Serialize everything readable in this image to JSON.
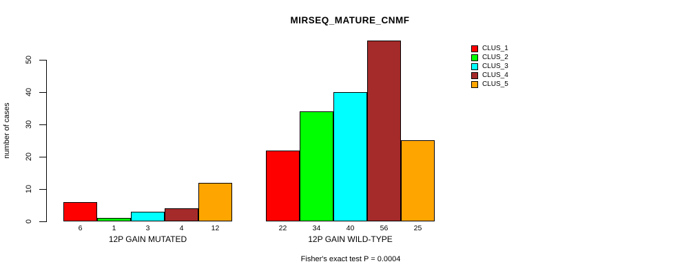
{
  "chart_data": {
    "type": "bar",
    "title": "MIRSEQ_MATURE_CNMF",
    "ylabel": "number of cases",
    "categories": [
      "12P GAIN MUTATED",
      "12P GAIN WILD-TYPE"
    ],
    "series": [
      {
        "name": "CLUS_1",
        "color": "#ff0000",
        "values": [
          6,
          22
        ]
      },
      {
        "name": "CLUS_2",
        "color": "#00ff00",
        "values": [
          1,
          34
        ]
      },
      {
        "name": "CLUS_3",
        "color": "#00ffff",
        "values": [
          3,
          40
        ]
      },
      {
        "name": "CLUS_4",
        "color": "#a52a2a",
        "values": [
          4,
          56
        ]
      },
      {
        "name": "CLUS_5",
        "color": "#ffa500",
        "values": [
          12,
          25
        ]
      }
    ],
    "yticks": [
      0,
      10,
      20,
      30,
      40,
      50
    ],
    "ylim": [
      0,
      50
    ],
    "bar_value_labels_shown": true,
    "legend_position": "right",
    "grid": false,
    "annotation": "Fisher's exact test P = 0.0004",
    "text_color": "#000000",
    "background_color": "#ffffff"
  }
}
